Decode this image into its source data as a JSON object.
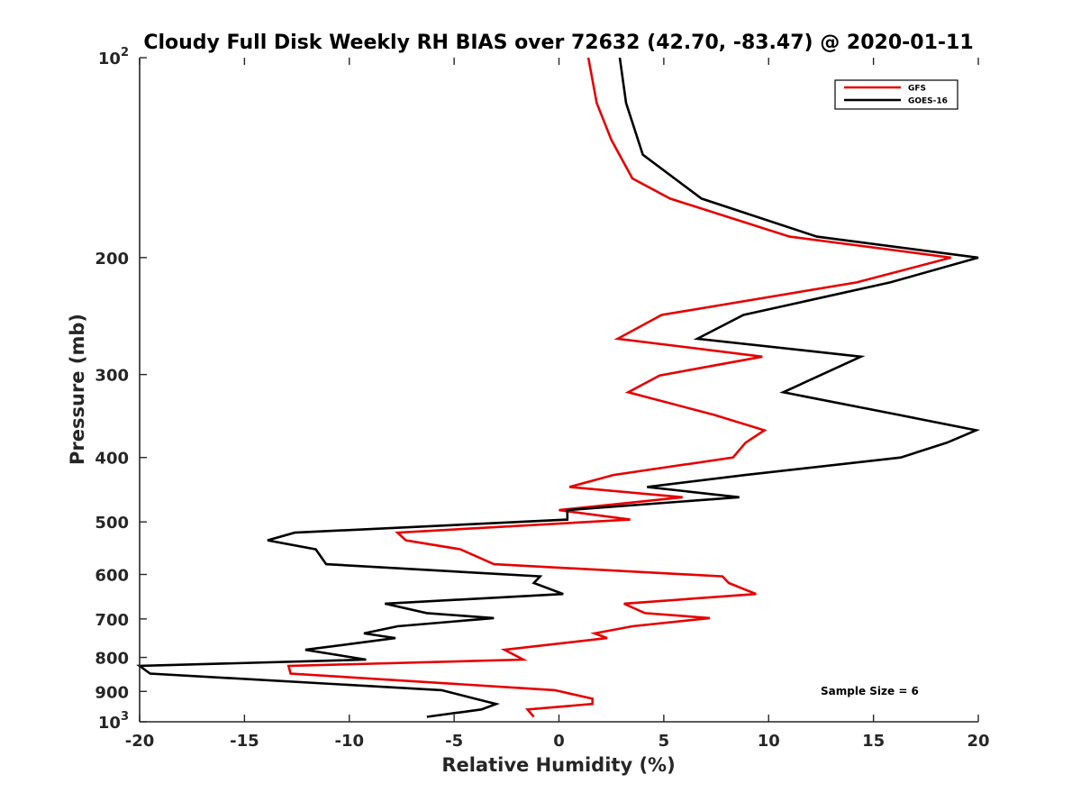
{
  "chart_data": {
    "type": "line",
    "title": "Cloudy Full Disk Weekly RH BIAS over 72632 (42.70, -83.47) @ 2020-01-11",
    "xlabel": "Relative Humidity (%)",
    "ylabel": "Pressure (mb)",
    "xlim": [
      -20,
      20
    ],
    "ylim": [
      100,
      1000
    ],
    "y_scale": "log",
    "y_reversed": true,
    "grid": false,
    "legend_position": "top-right",
    "x_ticks": [
      -20,
      -15,
      -10,
      -5,
      0,
      5,
      10,
      15,
      20
    ],
    "x_tick_labels": [
      "-20",
      "-15",
      "-10",
      "-5",
      "0",
      "5",
      "10",
      "15",
      "20"
    ],
    "y_ticks": [
      100,
      200,
      300,
      400,
      500,
      600,
      700,
      800,
      900,
      1000
    ],
    "y_tick_labels": [
      {
        "value": 100,
        "base": "10",
        "sup": "2"
      },
      {
        "value": 200,
        "base": "200",
        "sup": ""
      },
      {
        "value": 300,
        "base": "300",
        "sup": ""
      },
      {
        "value": 400,
        "base": "400",
        "sup": ""
      },
      {
        "value": 500,
        "base": "500",
        "sup": ""
      },
      {
        "value": 600,
        "base": "600",
        "sup": ""
      },
      {
        "value": 700,
        "base": "700",
        "sup": ""
      },
      {
        "value": 800,
        "base": "800",
        "sup": ""
      },
      {
        "value": 900,
        "base": "900",
        "sup": ""
      },
      {
        "value": 1000,
        "base": "10",
        "sup": "3"
      }
    ],
    "annotation": "Sample Size = 6",
    "series": [
      {
        "name": "GFS",
        "color": "#e60000",
        "points": [
          [
            1.4,
            100
          ],
          [
            1.8,
            117
          ],
          [
            2.5,
            133
          ],
          [
            3.5,
            152
          ],
          [
            5.3,
            163
          ],
          [
            11.0,
            186
          ],
          [
            18.7,
            200
          ],
          [
            14.2,
            218
          ],
          [
            4.9,
            244
          ],
          [
            2.8,
            265
          ],
          [
            9.7,
            282
          ],
          [
            4.8,
            301
          ],
          [
            3.3,
            319
          ],
          [
            7.4,
            345
          ],
          [
            9.8,
            364
          ],
          [
            8.9,
            380
          ],
          [
            8.3,
            400
          ],
          [
            2.6,
            425
          ],
          [
            0.5,
            443
          ],
          [
            5.9,
            459
          ],
          [
            0.0,
            480
          ],
          [
            3.4,
            496
          ],
          [
            -7.7,
            519
          ],
          [
            -7.3,
            533
          ],
          [
            -4.7,
            550
          ],
          [
            -3.1,
            579
          ],
          [
            7.8,
            604
          ],
          [
            8.1,
            618
          ],
          [
            9.4,
            642
          ],
          [
            3.1,
            664
          ],
          [
            4.1,
            686
          ],
          [
            7.2,
            698
          ],
          [
            3.5,
            718
          ],
          [
            1.7,
            736
          ],
          [
            2.3,
            748
          ],
          [
            -2.6,
            779
          ],
          [
            -1.7,
            806
          ],
          [
            -12.9,
            824
          ],
          [
            -12.8,
            846
          ],
          [
            -0.2,
            896
          ],
          [
            1.6,
            923
          ],
          [
            1.6,
            940
          ],
          [
            -1.5,
            958
          ],
          [
            -1.2,
            983
          ]
        ]
      },
      {
        "name": "GOES-16",
        "color": "#000000",
        "points": [
          [
            2.9,
            100
          ],
          [
            3.2,
            117
          ],
          [
            4.0,
            140
          ],
          [
            6.8,
            163
          ],
          [
            12.3,
            186
          ],
          [
            20.0,
            200
          ],
          [
            15.8,
            218
          ],
          [
            8.8,
            244
          ],
          [
            6.6,
            265
          ],
          [
            14.4,
            282
          ],
          [
            10.7,
            319
          ],
          [
            16.2,
            345
          ],
          [
            19.9,
            364
          ],
          [
            18.5,
            380
          ],
          [
            16.3,
            400
          ],
          [
            8.9,
            425
          ],
          [
            4.2,
            443
          ],
          [
            8.6,
            459
          ],
          [
            0.4,
            480
          ],
          [
            0.4,
            496
          ],
          [
            -12.6,
            519
          ],
          [
            -13.9,
            533
          ],
          [
            -11.6,
            550
          ],
          [
            -11.1,
            579
          ],
          [
            -0.9,
            604
          ],
          [
            -1.2,
            618
          ],
          [
            0.2,
            642
          ],
          [
            -8.3,
            664
          ],
          [
            -6.3,
            686
          ],
          [
            -3.1,
            698
          ],
          [
            -7.7,
            718
          ],
          [
            -9.3,
            736
          ],
          [
            -7.8,
            748
          ],
          [
            -12.1,
            779
          ],
          [
            -9.2,
            806
          ],
          [
            -20.0,
            824
          ],
          [
            -19.5,
            846
          ],
          [
            -5.6,
            896
          ],
          [
            -4.0,
            923
          ],
          [
            -3.0,
            940
          ],
          [
            -3.7,
            958
          ],
          [
            -6.3,
            983
          ]
        ]
      }
    ]
  }
}
